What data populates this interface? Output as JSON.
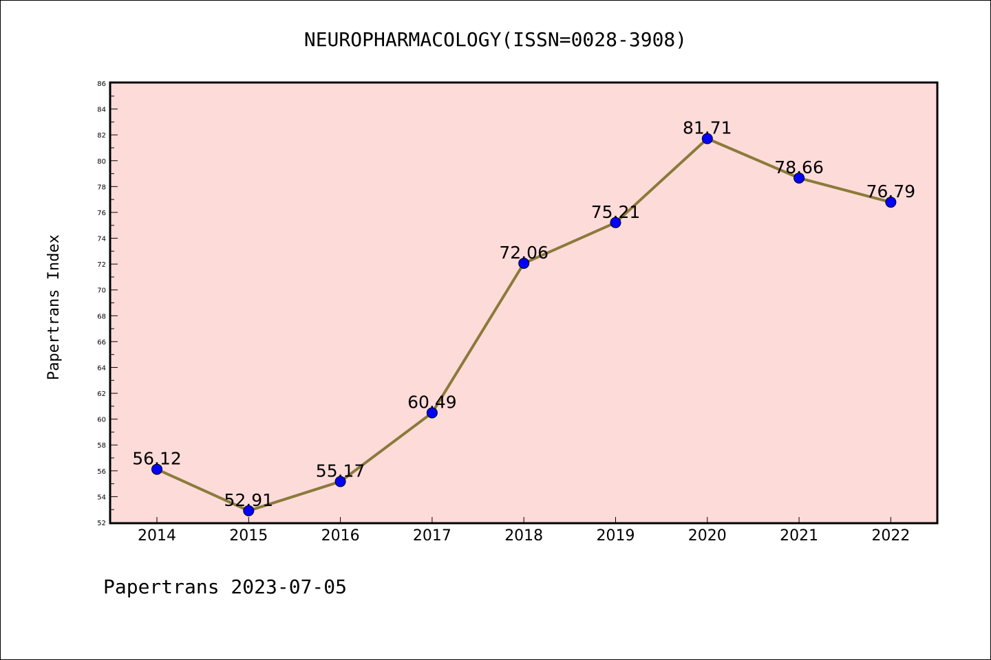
{
  "chart_data": {
    "type": "line",
    "title": "NEUROPHARMACOLOGY(ISSN=0028-3908)",
    "xlabel": "",
    "ylabel": "Papertrans Index",
    "categories": [
      "2014",
      "2015",
      "2016",
      "2017",
      "2018",
      "2019",
      "2020",
      "2021",
      "2022"
    ],
    "series": [
      {
        "values": [
          56.12,
          52.91,
          55.17,
          60.49,
          72.06,
          75.21,
          81.71,
          78.66,
          76.79
        ],
        "labels": [
          "56.12",
          "52.91",
          "55.17",
          "60.49",
          "72.06",
          "75.21",
          "81.71",
          "78.66",
          "76.79"
        ],
        "line_color": "#8b7a3a",
        "marker_color": "#0000ff"
      }
    ],
    "ylim": [
      52,
      86
    ],
    "y_ticks": [
      "52",
      "54",
      "56",
      "58",
      "60",
      "62",
      "64",
      "66",
      "68",
      "70",
      "72",
      "74",
      "76",
      "78",
      "80",
      "82",
      "84",
      "86"
    ],
    "plot_background": "#fddbd9",
    "grid": false,
    "legend": "none"
  },
  "footer": "Papertrans 2023-07-05"
}
